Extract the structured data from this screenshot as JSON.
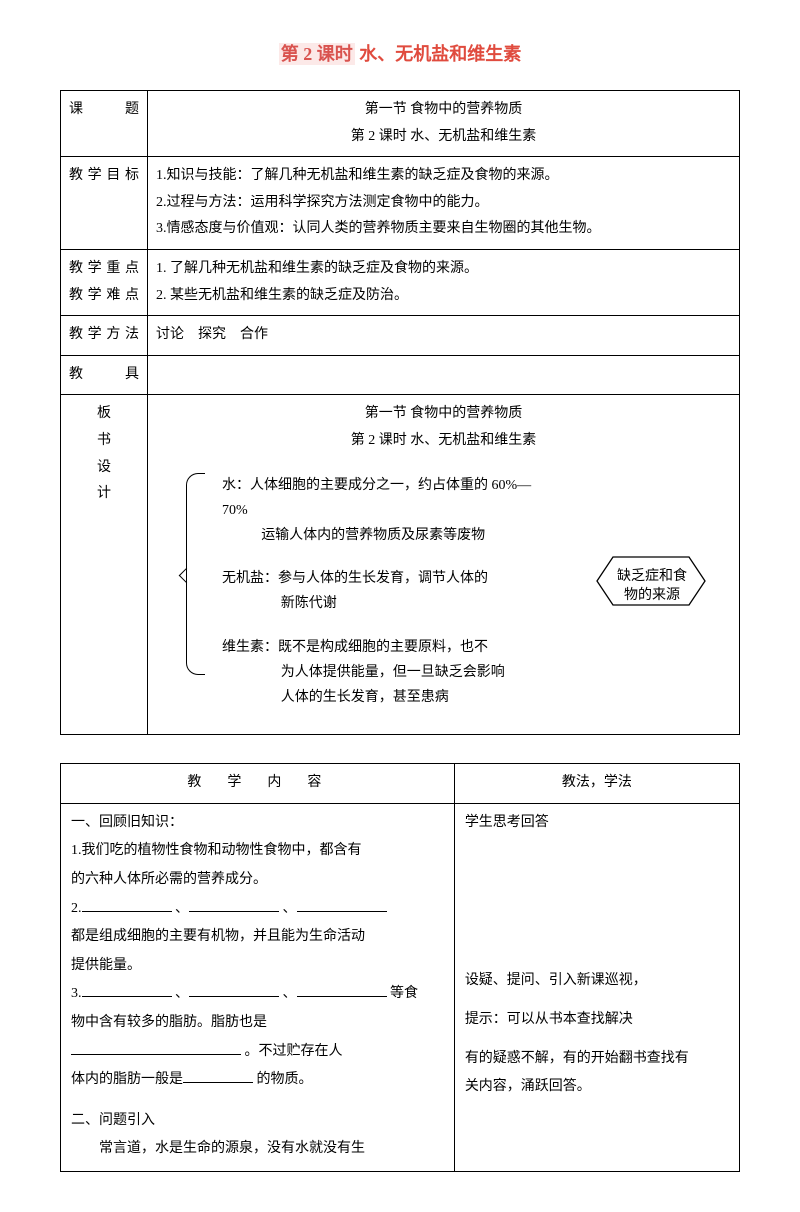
{
  "title": {
    "part1": "第 2 课时",
    "part2": " 水、无机盐和维生素"
  },
  "rows": {
    "topic_label": "课题",
    "topic_line1": "第一节  食物中的营养物质",
    "topic_line2": "第 2 课时   水、无机盐和维生素",
    "goal_label": "教学目标",
    "goal1": "1.知识与技能：了解几种无机盐和维生素的缺乏症及食物的来源。",
    "goal2": "2.过程与方法：运用科学探究方法测定食物中的能力。",
    "goal3": "3.情感态度与价值观：认同人类的营养物质主要来自生物圈的其他生物。",
    "focus_label1": "教学重点",
    "focus_label2": "教学难点",
    "focus1": "1. 了解几种无机盐和维生素的缺乏症及食物的来源。",
    "focus2": "2. 某些无机盐和维生素的缺乏症及防治。",
    "method_label": "教学方法",
    "method_val": "讨论　探究　合作",
    "tool_label": "教具",
    "board_label": "板书设计",
    "board_line1": "第一节  食物中的营养物质",
    "board_line2": "第 2 课时   水、无机盐和维生素",
    "d_water_a": "水：人体细胞的主要成分之一，约占体重的 60%—70%",
    "d_water_b": "运输人体内的营养物质及尿素等废物",
    "d_salt_a": "无机盐：参与人体的生长发育，调节人体的",
    "d_salt_b": "新陈代谢",
    "d_vit_a": "维生素：既不是构成细胞的主要原料，也不",
    "d_vit_b": "为人体提供能量，但一旦缺乏会影响",
    "d_vit_c": "人体的生长发育，甚至患病",
    "hex1": "缺乏症和食",
    "hex2": "物的来源"
  },
  "content": {
    "hdr_left": "教　学　内　容",
    "hdr_right": "教法，学法",
    "l1": "一、回顾旧知识：",
    "l2a": "1.我们吃的植物性食物和动物性食物中，都含有",
    "l2b": "的六种人体所必需的营养成分。",
    "l3a": "2.",
    "l3b": "、",
    "l3c": "、",
    "l4a": "都是组成细胞的主要有机物，并且能为生命活动",
    "l4b": "提供能量。",
    "l5a": "3.",
    "l5b": "、",
    "l5c": "、",
    "l5d": "等食",
    "l6a": "物中含有较多的脂肪。脂肪也是",
    "l7a": "。不过贮存在人",
    "l8a": "体内的脂肪一般是",
    "l8b": "的物质。",
    "l9": "二、问题引入",
    "l10": "常言道，水是生命的源泉，没有水就没有生",
    "r1": "学生思考回答",
    "r2": "设疑、提问、引入新课巡视，",
    "r3": "提示：可以从书本查找解决",
    "r4": "有的疑惑不解，有的开始翻书查找有",
    "r5": "关内容，涌跃回答。"
  },
  "colors": {
    "title_red": "#e04b3e",
    "highlight_bg": "#fce9e8",
    "text": "#000000",
    "border": "#000000"
  }
}
